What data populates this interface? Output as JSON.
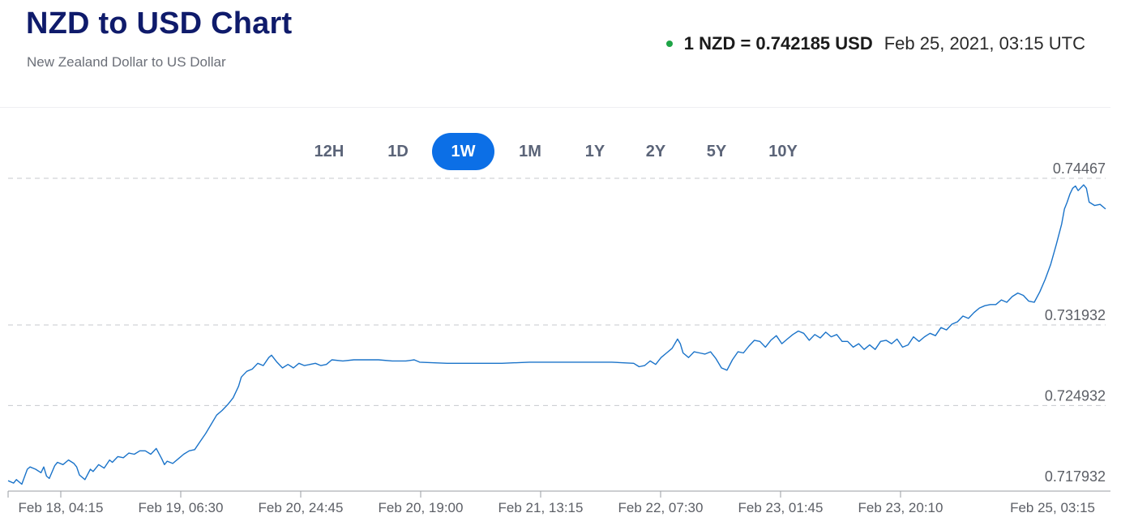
{
  "header": {
    "title": "NZD to USD Chart",
    "subtitle": "New Zealand Dollar to US Dollar",
    "rate_text": "1 NZD = 0.742185 USD",
    "timestamp": "Feb 25, 2021, 03:15 UTC",
    "status_color": "#1ea446"
  },
  "ranges": {
    "items": [
      {
        "label": "12H"
      },
      {
        "label": "1D"
      },
      {
        "label": "1W"
      },
      {
        "label": "1M"
      },
      {
        "label": "1Y"
      },
      {
        "label": "2Y"
      },
      {
        "label": "5Y"
      },
      {
        "label": "10Y"
      }
    ],
    "active": "1W",
    "active_color": "#0c6fe6"
  },
  "chart_data": {
    "type": "line",
    "title": "NZD to USD Chart",
    "ylabel": "",
    "xlabel": "",
    "ylim": [
      0.7175,
      0.7453
    ],
    "y_ticks": [
      0.717932,
      0.724932,
      0.731932,
      0.74467
    ],
    "y_tick_labels": [
      "0.717932",
      "0.724932",
      "0.731932",
      "0.74467"
    ],
    "x_tick_labels": [
      "Feb 18, 04:15",
      "Feb 19, 06:30",
      "Feb 20, 24:45",
      "Feb 20, 19:00",
      "Feb 21, 13:15",
      "Feb 22, 07:30",
      "Feb 23, 01:45",
      "Feb 23, 20:10",
      "Feb 25, 03:15"
    ],
    "grid": true,
    "line_color": "#1a73c9",
    "series": [
      {
        "values": [
          [
            0,
            0.7184
          ],
          [
            2,
            0.7182
          ],
          [
            3,
            0.7185
          ],
          [
            5,
            0.7181
          ],
          [
            7,
            0.7194
          ],
          [
            8,
            0.7196
          ],
          [
            10,
            0.7194
          ],
          [
            12,
            0.7191
          ],
          [
            13,
            0.7196
          ],
          [
            14,
            0.7188
          ],
          [
            15,
            0.7186
          ],
          [
            17,
            0.7197
          ],
          [
            18,
            0.72
          ],
          [
            20,
            0.7198
          ],
          [
            22,
            0.7202
          ],
          [
            24,
            0.7199
          ],
          [
            25,
            0.7196
          ],
          [
            26,
            0.7189
          ],
          [
            28,
            0.7185
          ],
          [
            30,
            0.7194
          ],
          [
            31,
            0.7192
          ],
          [
            33,
            0.7198
          ],
          [
            35,
            0.7195
          ],
          [
            37,
            0.7202
          ],
          [
            38,
            0.72
          ],
          [
            40,
            0.7205
          ],
          [
            42,
            0.7204
          ],
          [
            44,
            0.7208
          ],
          [
            46,
            0.7207
          ],
          [
            48,
            0.721
          ],
          [
            50,
            0.721
          ],
          [
            52,
            0.7207
          ],
          [
            54,
            0.7212
          ],
          [
            56,
            0.7203
          ],
          [
            57,
            0.7198
          ],
          [
            58,
            0.7201
          ],
          [
            60,
            0.7199
          ],
          [
            62,
            0.7203
          ],
          [
            64,
            0.7207
          ],
          [
            66,
            0.721
          ],
          [
            68,
            0.7211
          ],
          [
            70,
            0.7218
          ],
          [
            72,
            0.7225
          ],
          [
            74,
            0.7233
          ],
          [
            76,
            0.7241
          ],
          [
            78,
            0.7245
          ],
          [
            80,
            0.725
          ],
          [
            82,
            0.7256
          ],
          [
            84,
            0.7266
          ],
          [
            85,
            0.7274
          ],
          [
            87,
            0.7279
          ],
          [
            89,
            0.7281
          ],
          [
            91,
            0.7286
          ],
          [
            93,
            0.7284
          ],
          [
            95,
            0.7291
          ],
          [
            96,
            0.7293
          ],
          [
            98,
            0.7287
          ],
          [
            100,
            0.7282
          ],
          [
            102,
            0.7285
          ],
          [
            104,
            0.7282
          ],
          [
            106,
            0.7286
          ],
          [
            108,
            0.7284
          ],
          [
            110,
            0.7285
          ],
          [
            112,
            0.7286
          ],
          [
            114,
            0.7284
          ],
          [
            116,
            0.7285
          ],
          [
            118,
            0.7289
          ],
          [
            122,
            0.7288
          ],
          [
            126,
            0.7289
          ],
          [
            130,
            0.7289
          ],
          [
            135,
            0.7289
          ],
          [
            140,
            0.7288
          ],
          [
            145,
            0.7288
          ],
          [
            148,
            0.7289
          ],
          [
            150,
            0.7287
          ],
          [
            160,
            0.7286
          ],
          [
            170,
            0.7286
          ],
          [
            180,
            0.7286
          ],
          [
            190,
            0.7287
          ],
          [
            200,
            0.7287
          ],
          [
            210,
            0.7287
          ],
          [
            220,
            0.7287
          ],
          [
            228,
            0.7286
          ],
          [
            230,
            0.7283
          ],
          [
            232,
            0.7284
          ],
          [
            234,
            0.7288
          ],
          [
            236,
            0.7285
          ],
          [
            238,
            0.7291
          ],
          [
            240,
            0.7295
          ],
          [
            242,
            0.7299
          ],
          [
            244,
            0.7307
          ],
          [
            245,
            0.7303
          ],
          [
            246,
            0.7295
          ],
          [
            248,
            0.7291
          ],
          [
            250,
            0.7296
          ],
          [
            252,
            0.7295
          ],
          [
            254,
            0.7294
          ],
          [
            256,
            0.7296
          ],
          [
            258,
            0.729
          ],
          [
            260,
            0.7282
          ],
          [
            262,
            0.728
          ],
          [
            264,
            0.7289
          ],
          [
            266,
            0.7296
          ],
          [
            268,
            0.7295
          ],
          [
            270,
            0.7301
          ],
          [
            272,
            0.7306
          ],
          [
            274,
            0.7305
          ],
          [
            276,
            0.73
          ],
          [
            278,
            0.7306
          ],
          [
            280,
            0.731
          ],
          [
            282,
            0.7303
          ],
          [
            284,
            0.7307
          ],
          [
            286,
            0.7311
          ],
          [
            288,
            0.7314
          ],
          [
            290,
            0.7312
          ],
          [
            292,
            0.7306
          ],
          [
            294,
            0.7311
          ],
          [
            296,
            0.7308
          ],
          [
            298,
            0.7313
          ],
          [
            300,
            0.7309
          ],
          [
            302,
            0.7311
          ],
          [
            304,
            0.7305
          ],
          [
            306,
            0.7305
          ],
          [
            308,
            0.73
          ],
          [
            310,
            0.7303
          ],
          [
            312,
            0.7298
          ],
          [
            314,
            0.7302
          ],
          [
            316,
            0.7298
          ],
          [
            318,
            0.7305
          ],
          [
            320,
            0.7306
          ],
          [
            322,
            0.7303
          ],
          [
            324,
            0.7307
          ],
          [
            326,
            0.73
          ],
          [
            328,
            0.7302
          ],
          [
            330,
            0.7309
          ],
          [
            332,
            0.7305
          ],
          [
            334,
            0.7309
          ],
          [
            336,
            0.7312
          ],
          [
            338,
            0.731
          ],
          [
            340,
            0.7317
          ],
          [
            342,
            0.7315
          ],
          [
            344,
            0.732
          ],
          [
            346,
            0.7322
          ],
          [
            348,
            0.7327
          ],
          [
            350,
            0.7325
          ],
          [
            352,
            0.733
          ],
          [
            354,
            0.7334
          ],
          [
            356,
            0.7336
          ],
          [
            358,
            0.7337
          ],
          [
            360,
            0.7337
          ],
          [
            362,
            0.7341
          ],
          [
            364,
            0.7339
          ],
          [
            366,
            0.7344
          ],
          [
            368,
            0.7347
          ],
          [
            370,
            0.7345
          ],
          [
            372,
            0.734
          ],
          [
            374,
            0.7339
          ],
          [
            376,
            0.7348
          ],
          [
            378,
            0.7359
          ],
          [
            380,
            0.7372
          ],
          [
            382,
            0.7389
          ],
          [
            384,
            0.7407
          ],
          [
            385,
            0.742
          ],
          [
            386,
            0.7426
          ],
          [
            387,
            0.7433
          ],
          [
            388,
            0.7438
          ],
          [
            389,
            0.744
          ],
          [
            390,
            0.7436
          ],
          [
            392,
            0.7441
          ],
          [
            393,
            0.7438
          ],
          [
            394,
            0.7426
          ],
          [
            396,
            0.7423
          ],
          [
            398,
            0.7424
          ],
          [
            400,
            0.742
          ]
        ]
      }
    ]
  }
}
